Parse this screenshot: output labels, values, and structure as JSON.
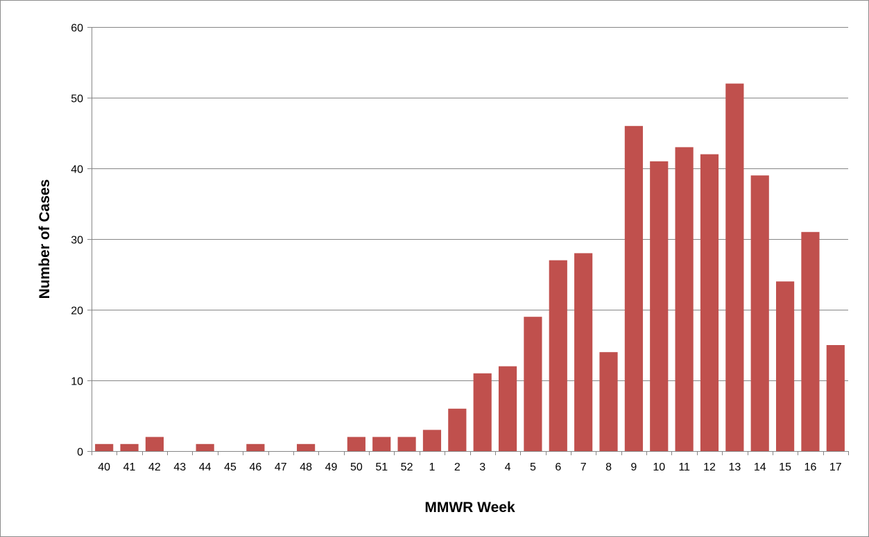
{
  "chart_data": {
    "type": "bar",
    "title": "",
    "xlabel": "MMWR Week",
    "ylabel": "Number of Cases",
    "categories": [
      "40",
      "41",
      "42",
      "43",
      "44",
      "45",
      "46",
      "47",
      "48",
      "49",
      "50",
      "51",
      "52",
      "1",
      "2",
      "3",
      "4",
      "5",
      "6",
      "7",
      "8",
      "9",
      "10",
      "11",
      "12",
      "13",
      "14",
      "15",
      "16",
      "17"
    ],
    "series": [
      {
        "values": [
          1,
          1,
          2,
          0,
          1,
          0,
          1,
          0,
          1,
          0,
          2,
          2,
          2,
          3,
          6,
          11,
          12,
          19,
          27,
          28,
          14,
          46,
          41,
          43,
          42,
          52,
          39,
          24,
          31,
          15
        ]
      }
    ],
    "ylim": [
      0,
      60
    ],
    "yticks": [
      0,
      10,
      20,
      30,
      40,
      50,
      60
    ],
    "grid": true,
    "legend": "none",
    "colors": {
      "bar": "#c0504d",
      "grid": "#868686",
      "axis": "#868686",
      "frame": "#8c8c8c"
    }
  }
}
